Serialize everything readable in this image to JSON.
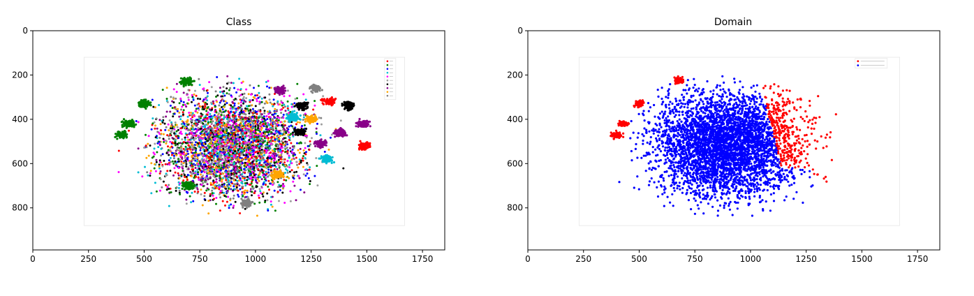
{
  "chart_data": [
    {
      "type": "scatter",
      "title": "Class",
      "xlabel": "",
      "ylabel": "",
      "xlim": [
        0,
        1850
      ],
      "ylim": [
        990,
        0
      ],
      "xticks": [
        0,
        250,
        500,
        750,
        1000,
        1250,
        1500,
        1750
      ],
      "yticks": [
        0,
        200,
        400,
        600,
        800
      ],
      "xtick_labels": [
        "0",
        "250",
        "500",
        "750",
        "1000",
        "1250",
        "1500",
        "1750"
      ],
      "ytick_labels": [
        "0",
        "200",
        "400",
        "600",
        "800"
      ],
      "grid": false,
      "image_extent": {
        "x": [
          230,
          1670
        ],
        "y": [
          120,
          880
        ]
      },
      "inner_legend": {
        "placement": "top-right",
        "n_entries": 10
      },
      "colors": [
        "#ff0000",
        "#008000",
        "#0000ff",
        "#00bcd4",
        "#ff00ff",
        "#9e9e9e",
        "#000000",
        "#880088",
        "#ffa500",
        "#808080"
      ],
      "clusters": [
        {
          "x": 690,
          "y": 230,
          "color": "#008000"
        },
        {
          "x": 1110,
          "y": 270,
          "color": "#880088"
        },
        {
          "x": 1270,
          "y": 260,
          "color": "#808080"
        },
        {
          "x": 1210,
          "y": 340,
          "color": "#000000"
        },
        {
          "x": 1330,
          "y": 320,
          "color": "#ff0000"
        },
        {
          "x": 1420,
          "y": 340,
          "color": "#000000"
        },
        {
          "x": 1480,
          "y": 420,
          "color": "#880088"
        },
        {
          "x": 1380,
          "y": 460,
          "color": "#880088"
        },
        {
          "x": 1490,
          "y": 520,
          "color": "#ff0000"
        },
        {
          "x": 1250,
          "y": 400,
          "color": "#ffa500"
        },
        {
          "x": 1170,
          "y": 390,
          "color": "#00bcd4"
        },
        {
          "x": 1200,
          "y": 460,
          "color": "#000000"
        },
        {
          "x": 1290,
          "y": 510,
          "color": "#880088"
        },
        {
          "x": 1320,
          "y": 580,
          "color": "#00bcd4"
        },
        {
          "x": 500,
          "y": 330,
          "color": "#008000"
        },
        {
          "x": 430,
          "y": 420,
          "color": "#008000"
        },
        {
          "x": 400,
          "y": 470,
          "color": "#008000"
        },
        {
          "x": 1100,
          "y": 650,
          "color": "#ffa500"
        },
        {
          "x": 960,
          "y": 780,
          "color": "#808080"
        },
        {
          "x": 700,
          "y": 700,
          "color": "#008000"
        }
      ]
    },
    {
      "type": "scatter",
      "title": "Domain",
      "xlabel": "",
      "ylabel": "",
      "xlim": [
        0,
        1850
      ],
      "ylim": [
        990,
        0
      ],
      "xticks": [
        0,
        250,
        500,
        750,
        1000,
        1250,
        1500,
        1750
      ],
      "yticks": [
        0,
        200,
        400,
        600,
        800
      ],
      "xtick_labels": [
        "0",
        "250",
        "500",
        "750",
        "1000",
        "1250",
        "1500",
        "1750"
      ],
      "ytick_labels": [
        "0",
        "200",
        "400",
        "600",
        "800"
      ],
      "grid": false,
      "image_extent": {
        "x": [
          230,
          1670
        ],
        "y": [
          120,
          880
        ]
      },
      "inner_legend": {
        "placement": "top-right",
        "n_entries": 2
      },
      "colors": [
        "#ff0000",
        "#0000ff"
      ],
      "series": [
        {
          "color": "#ff0000",
          "region": "right"
        },
        {
          "color": "#0000ff",
          "region": "center-left"
        }
      ]
    }
  ]
}
